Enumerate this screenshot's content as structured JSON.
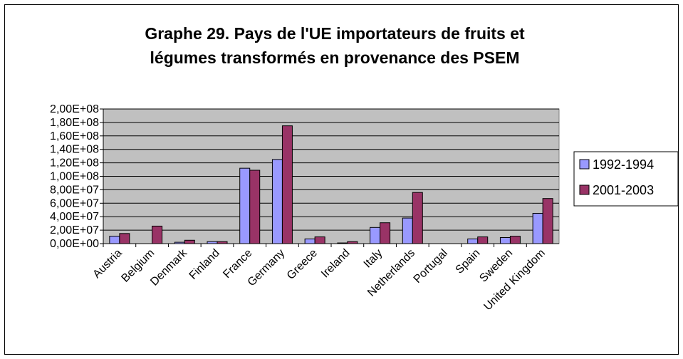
{
  "chart_data": {
    "type": "bar",
    "title": [
      "Graphe 29. Pays de l'UE importateurs de fruits et",
      "légumes transformés en provenance des PSEM"
    ],
    "categories": [
      "Austria",
      "Belgium",
      "Denmark",
      "Finland",
      "France",
      "Germany",
      "Greece",
      "Ireland",
      "Italy",
      "Netherlands",
      "Portugal",
      "Spain",
      "Sweden",
      "United Kingdom"
    ],
    "series": [
      {
        "name": "1992-1994",
        "color": "#9999ff",
        "values": [
          11000000,
          0,
          2000000,
          3000000,
          112000000,
          125000000,
          7000000,
          1000000,
          24000000,
          38000000,
          0,
          7000000,
          9000000,
          45000000
        ]
      },
      {
        "name": "2001-2003",
        "color": "#993366",
        "values": [
          15000000,
          26000000,
          5000000,
          3000000,
          109000000,
          175000000,
          10000000,
          3000000,
          31000000,
          76000000,
          0,
          10000000,
          11000000,
          67000000
        ]
      }
    ],
    "ylim": [
      0,
      200000000
    ],
    "yticks": [
      {
        "value": 0,
        "label": "0,00E+00"
      },
      {
        "value": 20000000,
        "label": "2,00E+07"
      },
      {
        "value": 40000000,
        "label": "4,00E+07"
      },
      {
        "value": 60000000,
        "label": "6,00E+07"
      },
      {
        "value": 80000000,
        "label": "8,00E+07"
      },
      {
        "value": 100000000,
        "label": "1,00E+08"
      },
      {
        "value": 120000000,
        "label": "1,20E+08"
      },
      {
        "value": 140000000,
        "label": "1,40E+08"
      },
      {
        "value": 160000000,
        "label": "1,60E+08"
      },
      {
        "value": 180000000,
        "label": "1,80E+08"
      },
      {
        "value": 200000000,
        "label": "2,00E+08"
      }
    ],
    "grid": true,
    "legend": "right"
  }
}
